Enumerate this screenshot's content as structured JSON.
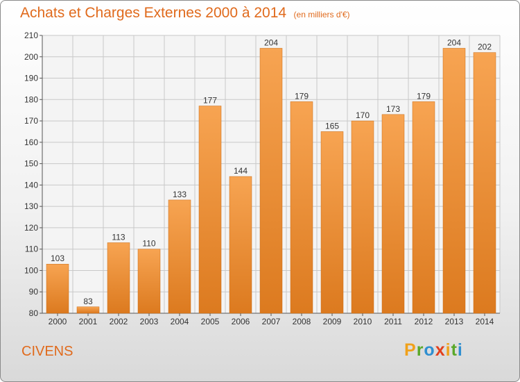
{
  "title": "Achats et Charges Externes 2000 à 2014",
  "subtitle": "(en milliers d'€)",
  "city": "CIVENS",
  "logo": {
    "letters": [
      {
        "ch": "P",
        "color": "#f0a11a"
      },
      {
        "ch": "r",
        "color": "#5aa82a"
      },
      {
        "ch": "o",
        "color": "#2f8fd0"
      },
      {
        "ch": "x",
        "color": "#e2401d"
      },
      {
        "ch": "i",
        "color": "#f0a11a"
      },
      {
        "ch": "t",
        "color": "#5aa82a"
      },
      {
        "ch": "i",
        "color": "#2f8fd0"
      }
    ]
  },
  "colors": {
    "accent": "#e06a1c",
    "bar_light": "#f7a452",
    "bar_dark": "#dc7a1f",
    "grid": "#c8c8c8"
  },
  "chart_data": {
    "type": "bar",
    "title": "Achats et Charges Externes 2000 à 2014",
    "categories": [
      "2000",
      "2001",
      "2002",
      "2003",
      "2004",
      "2005",
      "2006",
      "2007",
      "2008",
      "2009",
      "2010",
      "2011",
      "2012",
      "2013",
      "2014"
    ],
    "values": [
      103,
      83,
      113,
      110,
      133,
      177,
      144,
      204,
      179,
      165,
      170,
      173,
      179,
      204,
      202
    ],
    "ylim": [
      80,
      210
    ],
    "yticks": [
      80,
      90,
      100,
      110,
      120,
      130,
      140,
      150,
      160,
      170,
      180,
      190,
      200,
      210
    ],
    "grid": true,
    "xlabel": "",
    "ylabel": ""
  }
}
